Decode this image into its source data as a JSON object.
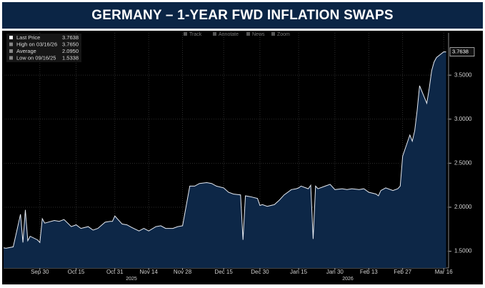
{
  "chart_data": {
    "type": "area",
    "title": "GERMANY – 1-YEAR FWD INFLATION SWAPS",
    "toolbar": [
      "Track",
      "Annotate",
      "News",
      "Zoom"
    ],
    "legend": [
      {
        "name": "Last Price",
        "value": 3.7638,
        "label": "3.7638"
      },
      {
        "name": "High on 03/16/26",
        "value": 3.765,
        "label": "3.7650"
      },
      {
        "name": "Average",
        "value": 2.095,
        "label": "2.0950"
      },
      {
        "name": "Low on 09/16/25",
        "value": 1.5338,
        "label": "1.5338"
      }
    ],
    "series": [
      {
        "name": "Last Price",
        "color": "#e6ebf3",
        "fill": "#0d2747",
        "x": [
          "2025-09-15",
          "2025-09-16",
          "2025-09-19",
          "2025-09-22",
          "2025-09-23",
          "2025-09-24",
          "2025-09-25",
          "2025-09-26",
          "2025-09-29",
          "2025-09-30",
          "2025-10-01",
          "2025-10-02",
          "2025-10-06",
          "2025-10-08",
          "2025-10-10",
          "2025-10-13",
          "2025-10-15",
          "2025-10-17",
          "2025-10-20",
          "2025-10-22",
          "2025-10-24",
          "2025-10-27",
          "2025-10-29",
          "2025-10-30",
          "2025-10-31",
          "2025-11-03",
          "2025-11-05",
          "2025-11-07",
          "2025-11-10",
          "2025-11-12",
          "2025-11-14",
          "2025-11-17",
          "2025-11-19",
          "2025-11-21",
          "2025-11-24",
          "2025-11-26",
          "2025-11-28",
          "2025-12-01",
          "2025-12-03",
          "2025-12-05",
          "2025-12-08",
          "2025-12-10",
          "2025-12-12",
          "2025-12-15",
          "2025-12-17",
          "2025-12-19",
          "2025-12-22",
          "2025-12-23",
          "2025-12-24",
          "2025-12-26",
          "2025-12-29",
          "2025-12-30",
          "2025-12-31",
          "2026-01-02",
          "2026-01-05",
          "2026-01-07",
          "2026-01-09",
          "2026-01-12",
          "2026-01-14",
          "2026-01-15",
          "2026-01-16",
          "2026-01-19",
          "2026-01-20",
          "2026-01-21",
          "2026-01-22",
          "2026-01-23",
          "2026-01-26",
          "2026-01-28",
          "2026-01-30",
          "2026-02-02",
          "2026-02-04",
          "2026-02-06",
          "2026-02-09",
          "2026-02-11",
          "2026-02-13",
          "2026-02-16",
          "2026-02-17",
          "2026-02-18",
          "2026-02-20",
          "2026-02-23",
          "2026-02-25",
          "2026-02-26",
          "2026-02-27",
          "2026-03-02",
          "2026-03-03",
          "2026-03-04",
          "2026-03-05",
          "2026-03-06",
          "2026-03-09",
          "2026-03-10",
          "2026-03-11",
          "2026-03-12",
          "2026-03-13",
          "2026-03-16",
          "2026-03-17"
        ],
        "values": [
          1.54,
          1.5338,
          1.55,
          1.92,
          1.6,
          1.97,
          1.62,
          1.67,
          1.63,
          1.6,
          1.87,
          1.82,
          1.85,
          1.84,
          1.86,
          1.78,
          1.8,
          1.76,
          1.78,
          1.74,
          1.76,
          1.83,
          1.84,
          1.84,
          1.9,
          1.81,
          1.8,
          1.77,
          1.73,
          1.76,
          1.73,
          1.78,
          1.79,
          1.76,
          1.76,
          1.78,
          1.79,
          2.24,
          2.24,
          2.27,
          2.28,
          2.27,
          2.24,
          2.22,
          2.17,
          2.15,
          2.14,
          1.63,
          2.13,
          2.12,
          2.1,
          2.02,
          2.03,
          2.01,
          2.03,
          2.08,
          2.14,
          2.2,
          2.21,
          2.22,
          2.24,
          2.21,
          2.25,
          1.64,
          2.24,
          2.21,
          2.24,
          2.26,
          2.2,
          2.21,
          2.2,
          2.21,
          2.2,
          2.21,
          2.17,
          2.15,
          2.13,
          2.19,
          2.22,
          2.19,
          2.21,
          2.24,
          2.58,
          2.82,
          2.75,
          2.87,
          3.1,
          3.38,
          3.18,
          3.35,
          3.55,
          3.65,
          3.7,
          3.765,
          3.7638
        ]
      }
    ],
    "xlim": [
      "2025-09-15",
      "2026-03-18"
    ],
    "xticks": [
      {
        "value": "2025-09-30",
        "label": "Sep 30"
      },
      {
        "value": "2025-10-15",
        "label": "Oct 15"
      },
      {
        "value": "2025-10-31",
        "label": "Oct 31"
      },
      {
        "value": "2025-11-14",
        "label": "Nov 14"
      },
      {
        "value": "2025-11-28",
        "label": "Nov 28"
      },
      {
        "value": "2025-12-15",
        "label": "Dec 15"
      },
      {
        "value": "2025-12-30",
        "label": "Dec 30"
      },
      {
        "value": "2026-01-15",
        "label": "Jan 15"
      },
      {
        "value": "2026-01-30",
        "label": "Jan 30"
      },
      {
        "value": "2026-02-13",
        "label": "Feb 13"
      },
      {
        "value": "2026-02-27",
        "label": "Feb 27"
      },
      {
        "value": "2026-03-16",
        "label": "Mar 16"
      }
    ],
    "years": [
      "2025",
      "2026"
    ],
    "ylim": [
      1.31,
      3.98
    ],
    "yticks": [
      {
        "value": 1.5,
        "label": "1.5000"
      },
      {
        "value": 2,
        "label": "2.0000"
      },
      {
        "value": 2.5,
        "label": "2.5000"
      },
      {
        "value": 3,
        "label": "3.0000"
      },
      {
        "value": 3.5,
        "label": "3.5000"
      }
    ],
    "grid": true
  }
}
